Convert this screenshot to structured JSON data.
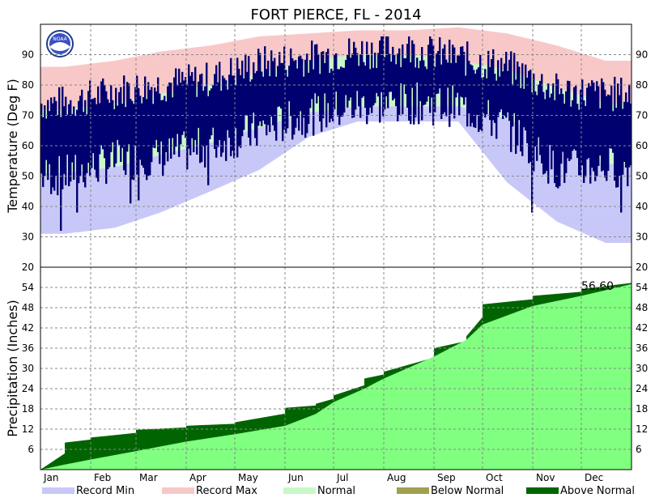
{
  "chart_data": {
    "type": "area",
    "title": "FORT PIERCE, FL - 2014",
    "months": [
      "Jan",
      "Feb",
      "Mar",
      "Apr",
      "May",
      "Jun",
      "Jul",
      "Aug",
      "Sep",
      "Oct",
      "Nov",
      "Dec"
    ],
    "temperature": {
      "ylabel": "Temperature (Deg F)",
      "ylim": [
        20,
        100
      ],
      "yticks": [
        30,
        40,
        50,
        60,
        70,
        80,
        90
      ],
      "normal_low_by_month": [
        51,
        53,
        57,
        61,
        66,
        71,
        73,
        73,
        73,
        69,
        61,
        54
      ],
      "normal_high_by_month": [
        72,
        74,
        77,
        80,
        84,
        88,
        90,
        90,
        88,
        85,
        79,
        74
      ],
      "record_high_by_month": [
        86,
        88,
        91,
        93,
        96,
        97,
        98,
        98,
        99,
        97,
        93,
        88
      ],
      "record_low_by_month": [
        31,
        33,
        38,
        45,
        52,
        63,
        68,
        68,
        68,
        48,
        35,
        28
      ],
      "actual_low_by_month": [
        50,
        55,
        56,
        60,
        65,
        70,
        73,
        74,
        73,
        66,
        52,
        53
      ],
      "actual_high_by_month": [
        74,
        78,
        80,
        82,
        87,
        89,
        91,
        92,
        89,
        86,
        78,
        77
      ],
      "daily_min_extremes": [
        {
          "month": 0,
          "day": 12,
          "value": 32
        },
        {
          "month": 0,
          "day": 22,
          "value": 38
        },
        {
          "month": 1,
          "day": 24,
          "value": 41
        },
        {
          "month": 2,
          "day": 1,
          "value": 42
        },
        {
          "month": 3,
          "day": 13,
          "value": 47
        },
        {
          "month": 9,
          "day": 30,
          "value": 38
        },
        {
          "month": 11,
          "day": 24,
          "value": 38
        }
      ]
    },
    "precipitation": {
      "ylabel": "Precipitation (Inches)",
      "ylim": [
        0,
        60
      ],
      "yticks": [
        6,
        12,
        18,
        24,
        30,
        36,
        42,
        48,
        54
      ],
      "x_day": [
        0,
        15,
        31,
        59,
        90,
        120,
        151,
        170,
        181,
        200,
        212,
        243,
        263,
        273,
        304,
        334,
        365
      ],
      "normal_cumulative": [
        0,
        1.5,
        3.0,
        5.5,
        8.3,
        10.5,
        13.0,
        16.5,
        20.0,
        24.0,
        27.0,
        33.5,
        38.5,
        43.0,
        48.5,
        51.5,
        55.0
      ],
      "actual_cumulative": [
        0,
        8.0,
        9.5,
        11.8,
        13.0,
        14.0,
        18.3,
        19.5,
        22.0,
        27.0,
        29.0,
        36.0,
        39.5,
        49.0,
        51.5,
        53.5,
        56.6
      ],
      "total_label": "56.60"
    },
    "legend": [
      {
        "label": "Record Min",
        "color": "#c8c8f8"
      },
      {
        "label": "Record Max",
        "color": "#f8c8c8"
      },
      {
        "label": "Normal",
        "color": "#c8f8c8"
      },
      {
        "label": "Below Normal",
        "color": "#a0a050"
      },
      {
        "label": "Above Normal",
        "color": "#006400"
      }
    ],
    "colors": {
      "actual": "#000070",
      "precip_normal": "#80ff80",
      "precip_above": "#006400",
      "grid": "#888888"
    }
  }
}
